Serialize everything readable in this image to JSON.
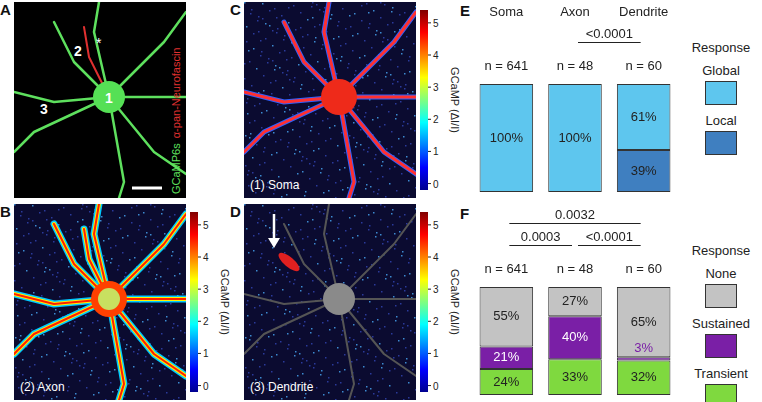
{
  "images": {
    "A": {
      "panel": "A",
      "green_label": "GCaMP6s",
      "red_label": "α-pan-Neurofascin",
      "site_labels": [
        "1",
        "2",
        "3"
      ],
      "asterisk": "*"
    },
    "B": {
      "panel": "B",
      "caption": "(2) Axon"
    },
    "C": {
      "panel": "C",
      "caption": "(1) Soma"
    },
    "D": {
      "panel": "D",
      "caption": "(3) Dendrite"
    }
  },
  "colorbar": {
    "label": "GCaMP (ΔI/I)",
    "range": [
      -0.2,
      5.4
    ],
    "ticks": [
      0,
      1,
      2,
      3,
      4,
      5
    ]
  },
  "chart_data": [
    {
      "panel": "E",
      "type": "bar",
      "stacked": true,
      "categories": [
        "Soma",
        "Axon",
        "Dendrite"
      ],
      "n_labels": [
        "n = 641",
        "n = 48",
        "n = 60"
      ],
      "series": [
        {
          "name": "Global",
          "color": "#5ec6ee",
          "values": [
            100,
            100,
            61
          ],
          "value_labels": [
            "100%",
            "100%",
            "61%"
          ]
        },
        {
          "name": "Local",
          "color": "#3f7fc0",
          "values": [
            0,
            0,
            39
          ],
          "value_labels": [
            null,
            null,
            "39%"
          ]
        }
      ],
      "ylim": [
        0,
        100
      ],
      "tick_labels": "x",
      "data_labels": true,
      "legend_title": "Response",
      "annotations": [
        {
          "text": "<0.0001",
          "from": 1,
          "to": 2
        }
      ]
    },
    {
      "panel": "F",
      "type": "bar",
      "stacked": true,
      "categories": [
        null,
        null,
        null
      ],
      "n_labels": [
        "n = 641",
        "n = 48",
        "n = 60"
      ],
      "series": [
        {
          "name": "None",
          "color": "#c3c3c3",
          "values": [
            55,
            27,
            65
          ],
          "value_labels": [
            "55%",
            "27%",
            "65%"
          ]
        },
        {
          "name": "Sustained",
          "color": "#7a1fa6",
          "values": [
            21,
            40,
            3
          ],
          "value_labels": [
            "21%",
            "40%",
            "3%"
          ]
        },
        {
          "name": "Transient",
          "color": "#7fd93f",
          "values": [
            24,
            33,
            32
          ],
          "value_labels": [
            "24%",
            "33%",
            "32%"
          ]
        }
      ],
      "ylim": [
        0,
        100
      ],
      "tick_labels": false,
      "data_labels": true,
      "legend_title": "Response",
      "annotations": [
        {
          "text": "0.0032",
          "from": 0,
          "to": 2
        },
        {
          "text": "0.0003",
          "from": 0,
          "to": 1
        },
        {
          "text": "<0.0001",
          "from": 1,
          "to": 2
        }
      ]
    }
  ]
}
